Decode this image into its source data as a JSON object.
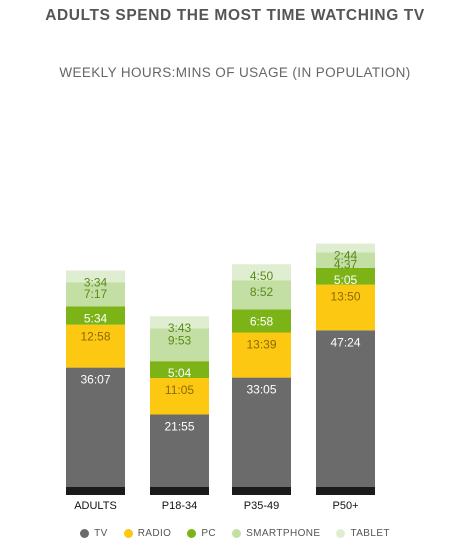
{
  "title": "ADULTS SPEND THE MOST TIME WATCHING TV",
  "subtitle": "WEEKLY HOURS:MINS OF USAGE (IN POPULATION)",
  "colors": {
    "TV": "#6b6b6b",
    "RADIO": "#fcc812",
    "PC": "#7cb317",
    "SMARTPHONE": "#c4dfa4",
    "TABLET": "#dfeed1",
    "label_dark": "#ffffff",
    "label_radio": "#8a6b00",
    "label_pc": "#ffffff",
    "label_light": "#5a8a1a",
    "baseline": "#1a1a1a"
  },
  "legend": [
    {
      "name": "TV",
      "color": "#6b6b6b"
    },
    {
      "name": "RADIO",
      "color": "#fcc812"
    },
    {
      "name": "PC",
      "color": "#7cb317"
    },
    {
      "name": "SMARTPHONE",
      "color": "#c4dfa4"
    },
    {
      "name": "TABLET",
      "color": "#dfeed1"
    }
  ],
  "chart_data": {
    "type": "bar",
    "stacked": true,
    "categories": [
      "ADULTS",
      "P18-34",
      "P35-49",
      "P50+"
    ],
    "unit": "hours:mins per week",
    "series": [
      {
        "name": "TV",
        "values": [
          36.117,
          21.917,
          33.083,
          47.4
        ],
        "labels": [
          "36:07",
          "21:55",
          "33:05",
          "47:24"
        ]
      },
      {
        "name": "RADIO",
        "values": [
          12.967,
          11.083,
          13.65,
          13.833
        ],
        "labels": [
          "12:58",
          "11:05",
          "13:39",
          "13:50"
        ]
      },
      {
        "name": "PC",
        "values": [
          5.567,
          5.067,
          6.967,
          5.083
        ],
        "labels": [
          "5:34",
          "5:04",
          "6:58",
          "5:05"
        ]
      },
      {
        "name": "SMARTPHONE",
        "values": [
          7.283,
          9.883,
          8.867,
          4.617
        ],
        "labels": [
          "7:17",
          "9:53",
          "8:52",
          "4:37"
        ]
      },
      {
        "name": "TABLET",
        "values": [
          3.567,
          3.717,
          4.833,
          2.733
        ],
        "labels": [
          "3:34",
          "3:43",
          "4:50",
          "2:44"
        ]
      }
    ]
  }
}
